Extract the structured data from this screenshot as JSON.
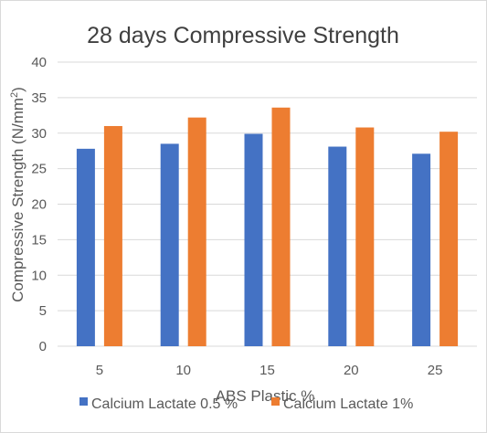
{
  "chart_data": {
    "type": "bar",
    "title": "28 days Compressive Strength",
    "xlabel": "ABS Plastic %",
    "ylabel_main": "Compressive Strength (N/mm",
    "ylabel_sup": "2",
    "ylabel_end": ")",
    "categories": [
      "5",
      "10",
      "15",
      "20",
      "25"
    ],
    "series": [
      {
        "name": "Calcium Lactate 0.5 %",
        "color": "#4472C4",
        "values": [
          27.8,
          28.5,
          29.9,
          28.1,
          27.1
        ]
      },
      {
        "name": "Calcium Lactate 1%",
        "color": "#ED7D31",
        "values": [
          31.0,
          32.2,
          33.6,
          30.8,
          30.2
        ]
      }
    ],
    "ylim": [
      0,
      40
    ],
    "yticks": [
      "0",
      "5",
      "10",
      "15",
      "20",
      "25",
      "30",
      "35",
      "40"
    ],
    "grid": true,
    "legend_position": "bottom"
  }
}
